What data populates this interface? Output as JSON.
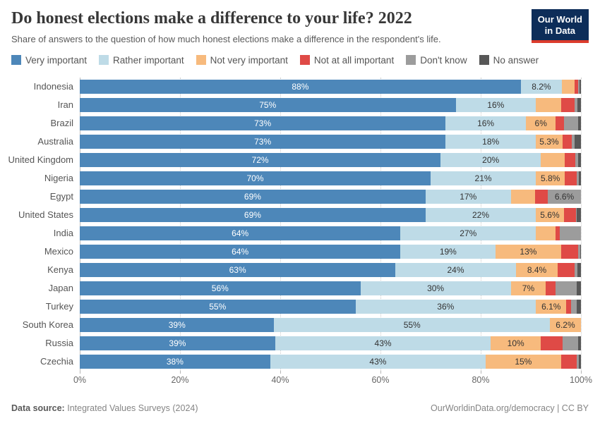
{
  "header": {
    "logo_line1": "Our World",
    "logo_line2": "in Data"
  },
  "chart_data": {
    "type": "bar",
    "stacked": true,
    "orientation": "horizontal",
    "title": "Do honest elections make a difference to your life? 2022",
    "subtitle": "Share of answers to the question of how much honest elections make a difference in the respondent's life.",
    "categories": [
      "Very important",
      "Rather important",
      "Not very important",
      "Not at all important",
      "Don't know",
      "No answer"
    ],
    "colors": [
      "#4d87b9",
      "#bedbe7",
      "#f7ba7d",
      "#df4a46",
      "#9c9c9c",
      "#575757"
    ],
    "xlabel": "",
    "ylabel": "",
    "xlim": [
      0,
      100
    ],
    "x_ticks": [
      0,
      20,
      40,
      60,
      80,
      100
    ],
    "x_tick_labels": [
      "0%",
      "20%",
      "40%",
      "60%",
      "80%",
      "100%"
    ],
    "grid": "vertical-dotted",
    "legend_position": "top",
    "rows": [
      {
        "name": "Indonesia",
        "values": [
          88,
          8.2,
          2.6,
          0.6,
          0.3,
          0.3
        ],
        "labels": [
          "88%",
          "8.2%",
          "",
          "",
          "",
          ""
        ]
      },
      {
        "name": "Iran",
        "values": [
          75,
          16,
          5,
          2.8,
          0.5,
          0.7
        ],
        "labels": [
          "75%",
          "16%",
          "",
          "",
          "",
          ""
        ]
      },
      {
        "name": "Brazil",
        "values": [
          73,
          16,
          6,
          1.6,
          2.9,
          0.5
        ],
        "labels": [
          "73%",
          "16%",
          "6%",
          "",
          "",
          ""
        ]
      },
      {
        "name": "Australia",
        "values": [
          73,
          18,
          5.3,
          1.9,
          0.5,
          1.3
        ],
        "labels": [
          "73%",
          "18%",
          "5.3%",
          "",
          "",
          ""
        ]
      },
      {
        "name": "United Kingdom",
        "values": [
          72,
          20,
          4.8,
          2.1,
          0.6,
          0.5
        ],
        "labels": [
          "72%",
          "20%",
          "",
          "",
          "",
          ""
        ]
      },
      {
        "name": "Nigeria",
        "values": [
          70,
          21,
          5.8,
          2.4,
          0.4,
          0.4
        ],
        "labels": [
          "70%",
          "21%",
          "5.8%",
          "",
          "",
          ""
        ]
      },
      {
        "name": "Egypt",
        "values": [
          69,
          17,
          4.8,
          2.6,
          6.6,
          0
        ],
        "labels": [
          "69%",
          "17%",
          "",
          "",
          "6.6%",
          ""
        ]
      },
      {
        "name": "United States",
        "values": [
          69,
          22,
          5.6,
          2.4,
          0.2,
          0.8
        ],
        "labels": [
          "69%",
          "22%",
          "5.6%",
          "",
          "",
          ""
        ]
      },
      {
        "name": "India",
        "values": [
          64,
          27,
          4,
          0.8,
          4.2,
          0
        ],
        "labels": [
          "64%",
          "27%",
          "",
          "",
          "",
          ""
        ]
      },
      {
        "name": "Mexico",
        "values": [
          64,
          19,
          13,
          3.5,
          0.3,
          0.2
        ],
        "labels": [
          "64%",
          "19%",
          "13%",
          "",
          "",
          ""
        ]
      },
      {
        "name": "Kenya",
        "values": [
          63,
          24,
          8.4,
          3.3,
          0.6,
          0.7
        ],
        "labels": [
          "63%",
          "24%",
          "8.4%",
          "",
          "",
          ""
        ]
      },
      {
        "name": "Japan",
        "values": [
          56,
          30,
          7,
          2,
          4.2,
          0.8
        ],
        "labels": [
          "56%",
          "30%",
          "7%",
          "",
          "",
          ""
        ]
      },
      {
        "name": "Turkey",
        "values": [
          55,
          36,
          6.1,
          0.9,
          1.2,
          0.8
        ],
        "labels": [
          "55%",
          "36%",
          "6.1%",
          "",
          "",
          ""
        ]
      },
      {
        "name": "South Korea",
        "values": [
          38.8,
          55,
          6.2,
          0,
          0,
          0
        ],
        "labels": [
          "39%",
          "55%",
          "6.2%",
          "",
          "",
          ""
        ]
      },
      {
        "name": "Russia",
        "values": [
          39,
          43,
          10,
          4.4,
          3,
          0.6
        ],
        "labels": [
          "39%",
          "43%",
          "10%",
          "",
          "",
          ""
        ]
      },
      {
        "name": "Czechia",
        "values": [
          38,
          43,
          15,
          3.1,
          0.5,
          0.4
        ],
        "labels": [
          "38%",
          "43%",
          "15%",
          "",
          "",
          ""
        ]
      }
    ]
  },
  "footer": {
    "source_label": "Data source:",
    "source_text": "Integrated Values Surveys (2024)",
    "right_link": "OurWorldinData.org/democracy",
    "divider": "|",
    "license": "CC BY"
  }
}
